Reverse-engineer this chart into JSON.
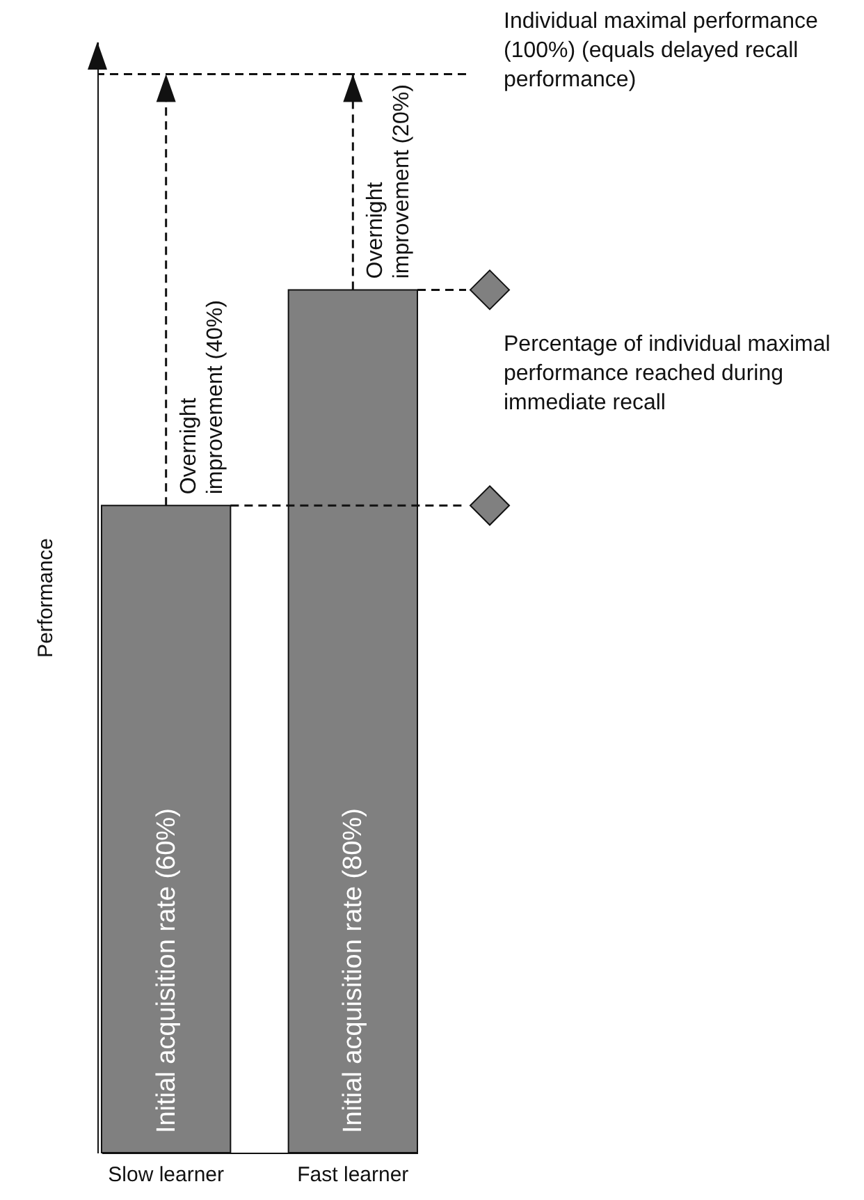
{
  "chart_data": {
    "type": "bar",
    "ylabel": "Performance",
    "ylim": [
      0,
      103
    ],
    "categories": [
      "Slow learner",
      "Fast learner"
    ],
    "values": [
      60,
      80
    ],
    "value_labels": [
      "Initial acquisition rate (60%)",
      "Initial acquisition rate (80%)"
    ],
    "color": "#808080",
    "tick_labels": "x",
    "ref_lines": [
      {
        "axis": "y",
        "value": 100,
        "label": "Individual maximal performance (100%) (equals delayed recall performance)",
        "line_style": "dashed"
      }
    ],
    "annotations": [
      "Overnight improvement (40%)",
      "Overnight improvement (20%)",
      "Percentage of individual maximal performance reached during immediate recall"
    ]
  }
}
